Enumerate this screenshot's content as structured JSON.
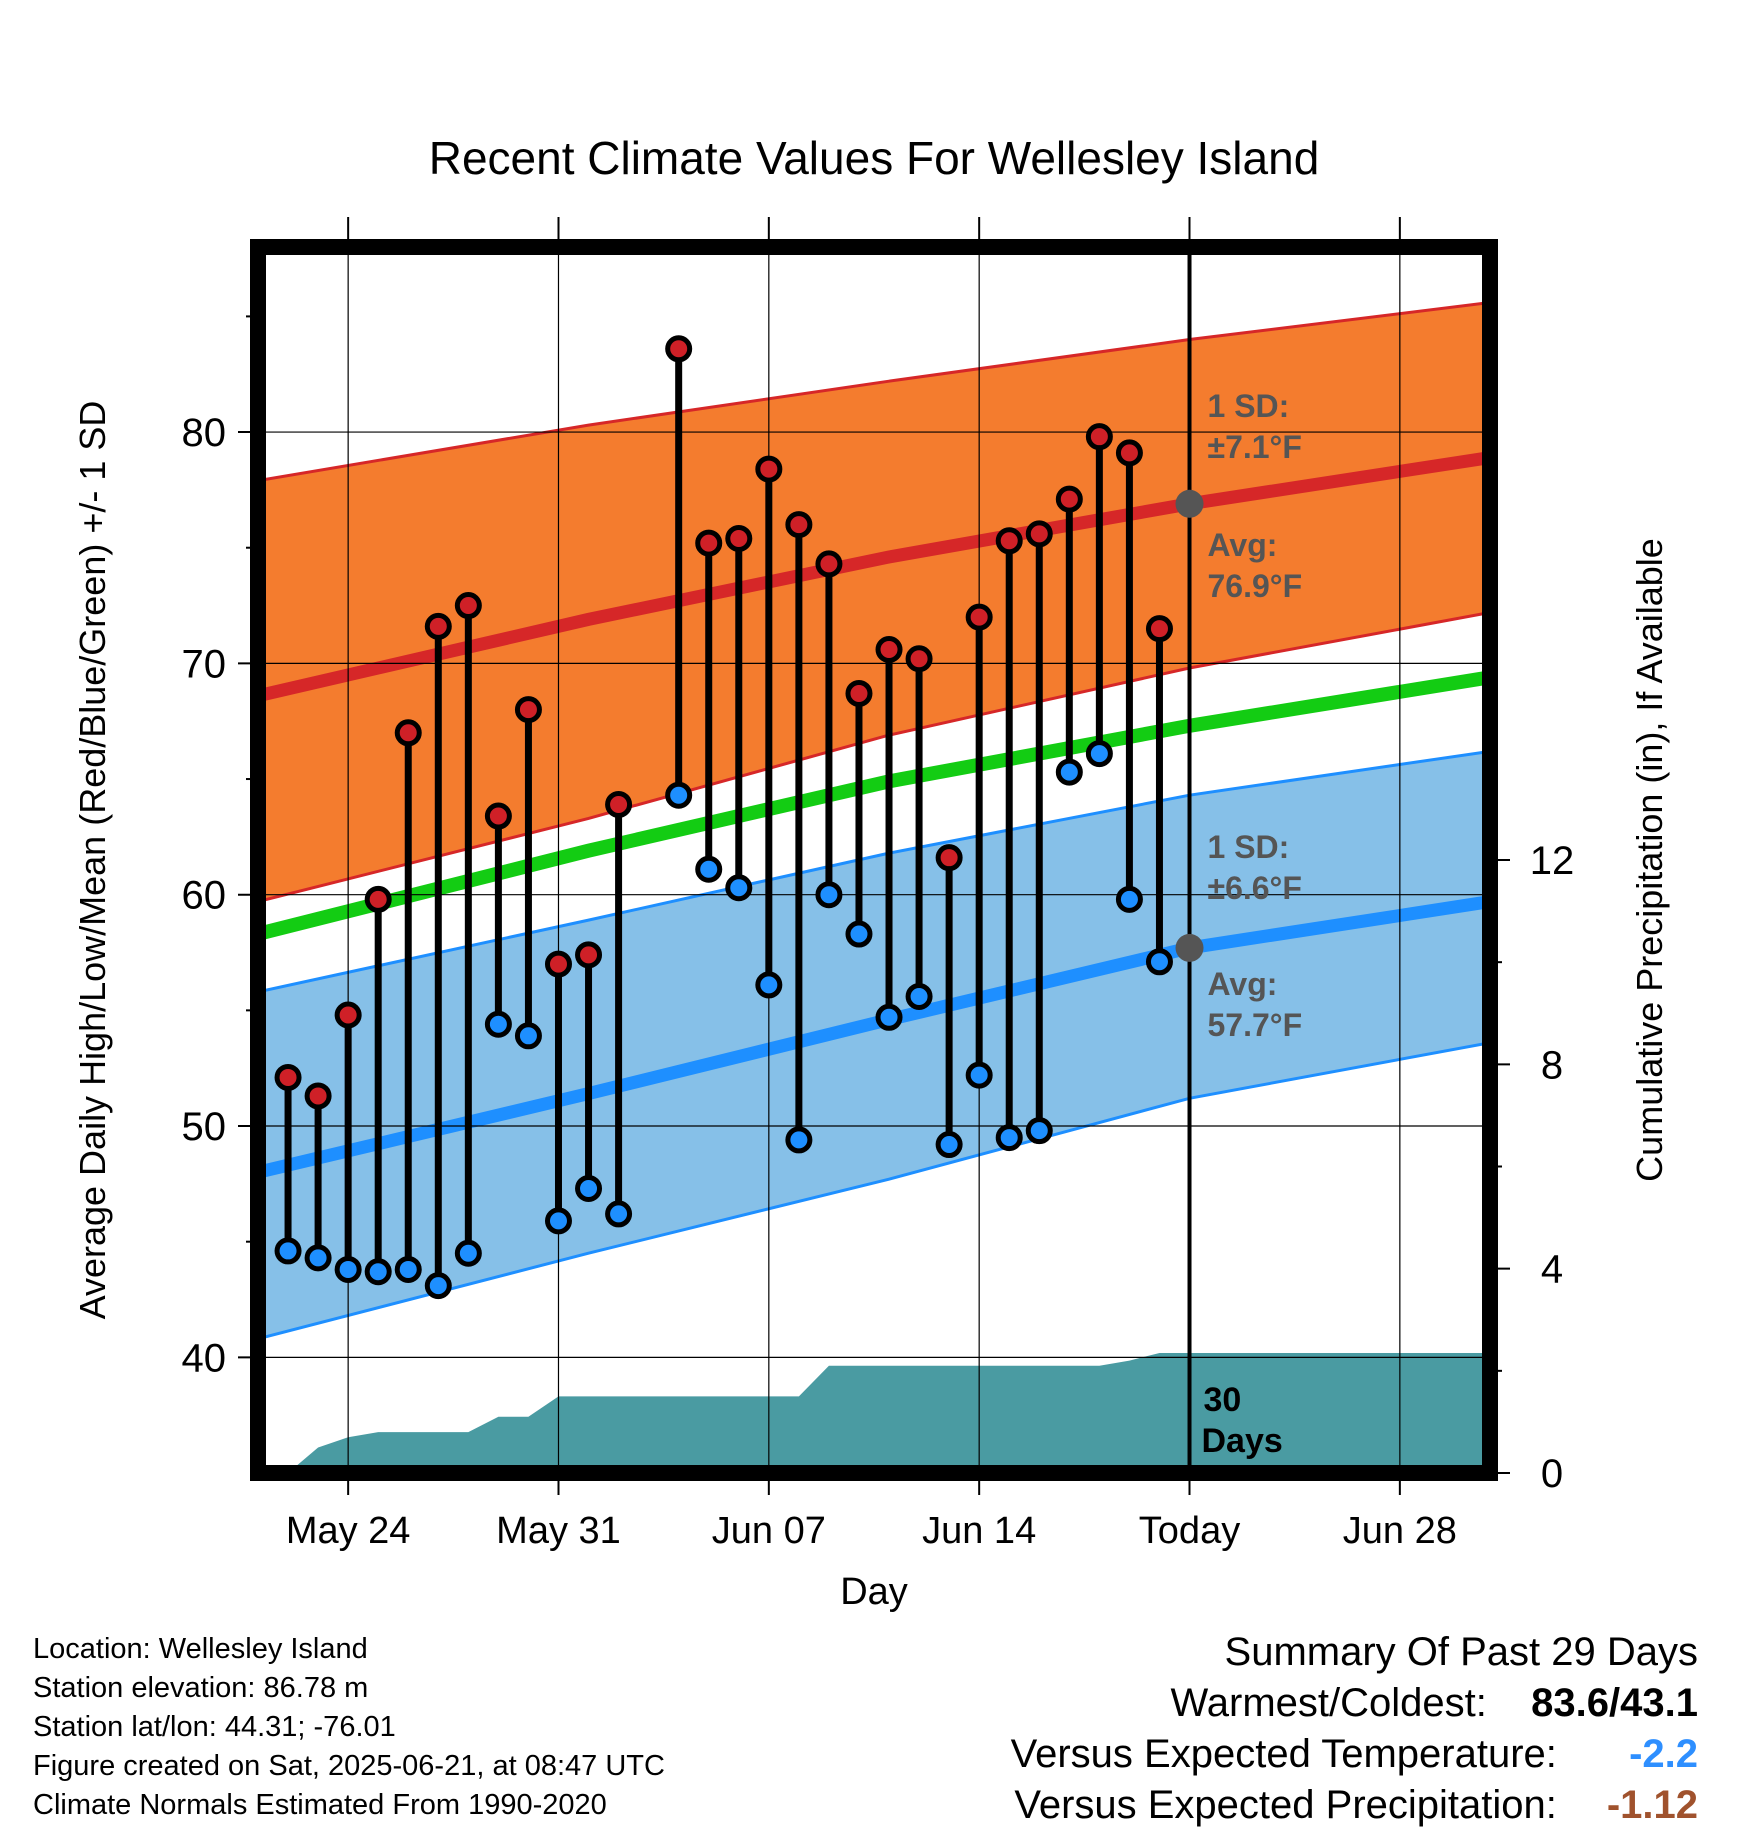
{
  "chart_data": {
    "type": "line",
    "title": "Recent Climate Values For Wellesley Island",
    "xlabel": "Day",
    "ylabel": "Average Daily High/Low/Mean (Red/Blue/Green) +/- 1 SD",
    "y2label": "Cumulative Precipitation (in), If Available",
    "x_ticks": [
      "May 24",
      "May 31",
      "Jun 07",
      "Jun 14",
      "Today",
      "Jun 28"
    ],
    "x_range": [
      "2025-05-21",
      "2025-07-01"
    ],
    "today": "2025-06-21",
    "ylim": [
      35,
      88
    ],
    "yticks": [
      40,
      50,
      60,
      70,
      80
    ],
    "y2lim": [
      0,
      24
    ],
    "y2ticks": [
      0,
      4,
      8,
      12
    ],
    "grid": true,
    "normals": {
      "dates": [
        "2025-05-21",
        "2025-06-01",
        "2025-06-11",
        "2025-06-21",
        "2025-07-01"
      ],
      "avg_high": [
        68.6,
        71.9,
        74.6,
        76.9,
        78.9
      ],
      "high_sd_upper": [
        77.9,
        80.3,
        82.2,
        84.0,
        85.6
      ],
      "high_sd_lower": [
        59.7,
        63.3,
        66.9,
        69.8,
        72.2
      ],
      "avg_mean": [
        58.3,
        61.9,
        64.9,
        67.3,
        69.4
      ],
      "avg_low": [
        48.0,
        51.4,
        54.6,
        57.7,
        59.7
      ],
      "low_sd_upper": [
        55.8,
        58.9,
        61.8,
        64.3,
        66.2
      ],
      "low_sd_lower": [
        40.8,
        44.5,
        47.7,
        51.2,
        53.6
      ]
    },
    "observed": {
      "dates": [
        "2025-05-22",
        "2025-05-23",
        "2025-05-24",
        "2025-05-25",
        "2025-05-26",
        "2025-05-27",
        "2025-05-28",
        "2025-05-29",
        "2025-05-30",
        "2025-05-31",
        "2025-06-01",
        "2025-06-02",
        "2025-06-04",
        "2025-06-05",
        "2025-06-06",
        "2025-06-07",
        "2025-06-08",
        "2025-06-09",
        "2025-06-10",
        "2025-06-11",
        "2025-06-12",
        "2025-06-13",
        "2025-06-14",
        "2025-06-15",
        "2025-06-16",
        "2025-06-17",
        "2025-06-18",
        "2025-06-19",
        "2025-06-20"
      ],
      "highs": [
        52.1,
        51.3,
        54.8,
        59.8,
        67.0,
        71.6,
        72.5,
        63.4,
        68.0,
        57.0,
        57.4,
        63.9,
        83.6,
        75.2,
        75.4,
        78.4,
        76.0,
        74.3,
        68.7,
        70.6,
        70.2,
        61.6,
        72.0,
        75.3,
        75.6,
        77.1,
        79.8,
        79.1,
        71.5
      ],
      "lows": [
        44.6,
        44.3,
        43.8,
        43.7,
        43.8,
        43.1,
        44.5,
        54.4,
        53.9,
        45.9,
        47.3,
        46.2,
        64.3,
        61.1,
        60.3,
        56.1,
        49.4,
        60.0,
        58.3,
        54.7,
        55.6,
        49.2,
        52.2,
        49.5,
        49.8,
        65.3,
        66.1,
        59.8,
        57.1
      ]
    },
    "precipitation": {
      "dates": [
        "2025-05-21",
        "2025-05-22",
        "2025-05-23",
        "2025-05-24",
        "2025-05-25",
        "2025-05-26",
        "2025-05-27",
        "2025-05-28",
        "2025-05-29",
        "2025-05-30",
        "2025-05-31",
        "2025-06-01",
        "2025-06-02",
        "2025-06-03",
        "2025-06-04",
        "2025-06-05",
        "2025-06-06",
        "2025-06-07",
        "2025-06-08",
        "2025-06-09",
        "2025-06-10",
        "2025-06-17",
        "2025-06-18",
        "2025-06-19",
        "2025-06-20",
        "2025-06-21",
        "2025-07-01"
      ],
      "cumulative": [
        0.0,
        0.0,
        0.5,
        0.7,
        0.8,
        0.8,
        0.8,
        0.8,
        1.1,
        1.1,
        1.5,
        1.5,
        1.5,
        1.5,
        1.5,
        1.5,
        1.5,
        1.5,
        1.5,
        2.1,
        2.1,
        2.1,
        2.1,
        2.2,
        2.35,
        2.35,
        2.35
      ]
    },
    "annotations": {
      "high_sd": "1 SD:",
      "high_sd_value": "±7.1°F",
      "high_avg": "Avg:",
      "high_avg_value": "76.9°F",
      "low_sd": "1 SD:",
      "low_sd_value": "±6.6°F",
      "low_avg": "Avg:",
      "low_avg_value": "57.7°F",
      "days_count": "30",
      "days_label": "Days"
    },
    "colors": {
      "high_band": "#f47c2e",
      "high_line": "#d62728",
      "mean_line": "#13cc13",
      "low_band": "#86c0e8",
      "low_line": "#1e8fff",
      "precip_fill": "#4a9ba2",
      "high_marker": "#cf2027",
      "low_marker": "#1e8fff",
      "annotation_text": "#555555"
    }
  },
  "info": {
    "location": "Location: Wellesley Island",
    "elevation": "Station elevation: 86.78 m",
    "latlon": "Station lat/lon: 44.31; -76.01",
    "created": "Figure created on Sat, 2025-06-21, at 08:47 UTC",
    "normals": "Climate Normals Estimated From 1990-2020"
  },
  "summary": {
    "title": "Summary Of Past 29 Days",
    "warmest_coldest_label": "Warmest/Coldest:",
    "warmest_coldest_value": "83.6/43.1",
    "temp_label": "Versus Expected Temperature:",
    "temp_value": "-2.2",
    "temp_color": "#2e8fff",
    "precip_label": "Versus Expected Precipitation:",
    "precip_value": "-1.12",
    "precip_color": "#a0522d"
  }
}
